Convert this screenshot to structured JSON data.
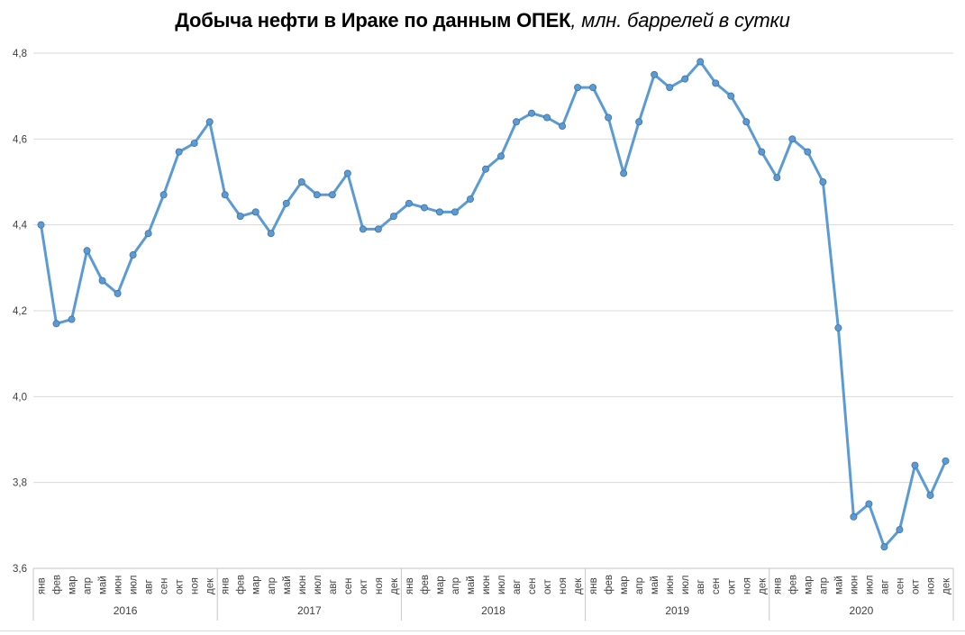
{
  "chart_data": {
    "type": "line",
    "title": "Добыча нефти в Ираке по данным ОПЕК, млн. баррелей в сутки",
    "title_main": "Добыча нефти в Ираке по данным ОПЕК",
    "title_italic": ", млн. баррелей в сутки",
    "x_months": [
      "янв",
      "фев",
      "мар",
      "апр",
      "май",
      "июн",
      "июл",
      "авг",
      "сен",
      "окт",
      "ноя",
      "дек"
    ],
    "x_years": [
      "2016",
      "2017",
      "2018",
      "2019",
      "2020"
    ],
    "values": [
      4.4,
      4.17,
      4.18,
      4.34,
      4.27,
      4.24,
      4.33,
      4.38,
      4.47,
      4.57,
      4.59,
      4.64,
      4.47,
      4.42,
      4.43,
      4.38,
      4.45,
      4.5,
      4.47,
      4.47,
      4.52,
      4.39,
      4.39,
      4.42,
      4.45,
      4.44,
      4.43,
      4.43,
      4.46,
      4.53,
      4.56,
      4.64,
      4.66,
      4.65,
      4.63,
      4.72,
      4.72,
      4.65,
      4.52,
      4.64,
      4.75,
      4.72,
      4.74,
      4.78,
      4.73,
      4.7,
      4.64,
      4.57,
      4.51,
      4.6,
      4.57,
      4.5,
      4.16,
      3.72,
      3.75,
      3.65,
      3.69,
      3.84,
      3.77,
      3.85
    ],
    "y_ticks": [
      {
        "v": 3.6,
        "label": "3,6"
      },
      {
        "v": 3.8,
        "label": "3,8"
      },
      {
        "v": 4.0,
        "label": "4,0"
      },
      {
        "v": 4.2,
        "label": "4,2"
      },
      {
        "v": 4.4,
        "label": "4,4"
      },
      {
        "v": 4.6,
        "label": "4,6"
      },
      {
        "v": 4.8,
        "label": "4,8"
      }
    ],
    "ylim": [
      3.6,
      4.8
    ],
    "grid": "horizontal-only",
    "legend": "none",
    "marker": "circle",
    "colors": {
      "line": "#5B9BD5",
      "marker_fill": "#5B9BD5",
      "marker_stroke": "#41719C",
      "gridline": "#D9D9D9",
      "axis": "#C6C6C6",
      "tick_text": "#404040",
      "title_text": "#000000"
    }
  }
}
